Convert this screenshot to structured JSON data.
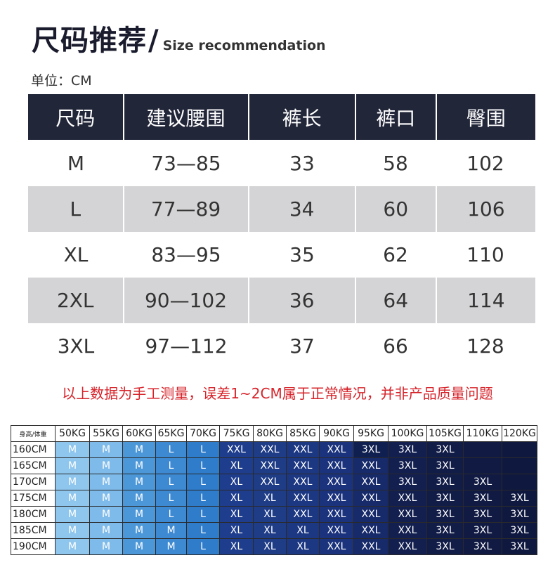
{
  "title": {
    "cn": "尺码推荐",
    "slash": "/",
    "en": "Size recommendation"
  },
  "unit": "单位：CM",
  "size_table": {
    "headers": [
      "尺码",
      "建议腰围",
      "裤长",
      "裤口",
      "臀围"
    ],
    "rows": [
      [
        "M",
        "73—85",
        "33",
        "58",
        "102"
      ],
      [
        "L",
        "77—89",
        "34",
        "60",
        "106"
      ],
      [
        "XL",
        "83—95",
        "35",
        "62",
        "110"
      ],
      [
        "2XL",
        "90—102",
        "36",
        "64",
        "114"
      ],
      [
        "3XL",
        "97—112",
        "37",
        "66",
        "128"
      ]
    ]
  },
  "note": "以上数据为手工测量，误差1~2CM属于正常情况，并非产品质量问题",
  "weight_grid": {
    "corner": "身高/体重",
    "weights": [
      "50KG",
      "55KG",
      "60KG",
      "65KG",
      "70KG",
      "75KG",
      "80KG",
      "85KG",
      "90KG",
      "95KG",
      "100KG",
      "105KG",
      "110KG",
      "120KG"
    ],
    "rows": [
      {
        "height": "160CM",
        "sizes": [
          "M",
          "M",
          "M",
          "L",
          "L",
          "XXL",
          "XXL",
          "XXL",
          "XXL",
          "3XL",
          "3XL",
          "3XL",
          "",
          ""
        ]
      },
      {
        "height": "165CM",
        "sizes": [
          "M",
          "M",
          "M",
          "L",
          "L",
          "XL",
          "XXL",
          "XXL",
          "XXL",
          "XXL",
          "3XL",
          "3XL",
          "",
          ""
        ]
      },
      {
        "height": "170CM",
        "sizes": [
          "M",
          "M",
          "M",
          "L",
          "L",
          "XL",
          "XXL",
          "XXL",
          "XXL",
          "XXL",
          "3XL",
          "3XL",
          "3XL",
          ""
        ]
      },
      {
        "height": "175CM",
        "sizes": [
          "M",
          "M",
          "M",
          "L",
          "L",
          "XL",
          "XL",
          "XXL",
          "XXL",
          "XXL",
          "XXL",
          "3XL",
          "3XL",
          "3XL"
        ]
      },
      {
        "height": "180CM",
        "sizes": [
          "M",
          "M",
          "M",
          "L",
          "L",
          "XL",
          "XL",
          "XXL",
          "XXL",
          "XXL",
          "XXL",
          "3XL",
          "3XL",
          "3XL"
        ]
      },
      {
        "height": "185CM",
        "sizes": [
          "M",
          "M",
          "M",
          "M",
          "L",
          "XL",
          "XL",
          "XL",
          "XXL",
          "XXL",
          "XXL",
          "3XL",
          "3XL",
          "3XL"
        ]
      },
      {
        "height": "190CM",
        "sizes": [
          "M",
          "M",
          "M",
          "M",
          "L",
          "XL",
          "XL",
          "XL",
          "XXL",
          "XXL",
          "XXL",
          "3XL",
          "3XL",
          "3XL"
        ]
      }
    ],
    "column_colors": [
      "#8fc6ee",
      "#7fbbea",
      "#4b97d8",
      "#3d89d2",
      "#2f7ccb",
      "#1e3d8c",
      "#1f3c87",
      "#1d3883",
      "#1b337d",
      "#172a6a",
      "#121f4f",
      "#111c47",
      "#101a43",
      "#0f183f"
    ],
    "dark_colors": [
      "#5fa3de",
      "#4d98d9",
      "#3686ce",
      "#2d7bc7",
      "#2570c1",
      "#15348a",
      "#163487",
      "#153083",
      "#142d7d",
      "#0f1f50",
      "#0e1b45",
      "#0d1941",
      "#0c173d",
      "#0b1539"
    ]
  },
  "colors": {
    "title": "#1a1c2e",
    "header_bg": "#222639",
    "alt_row": "#d4d4d6",
    "note": "#d6232a"
  }
}
